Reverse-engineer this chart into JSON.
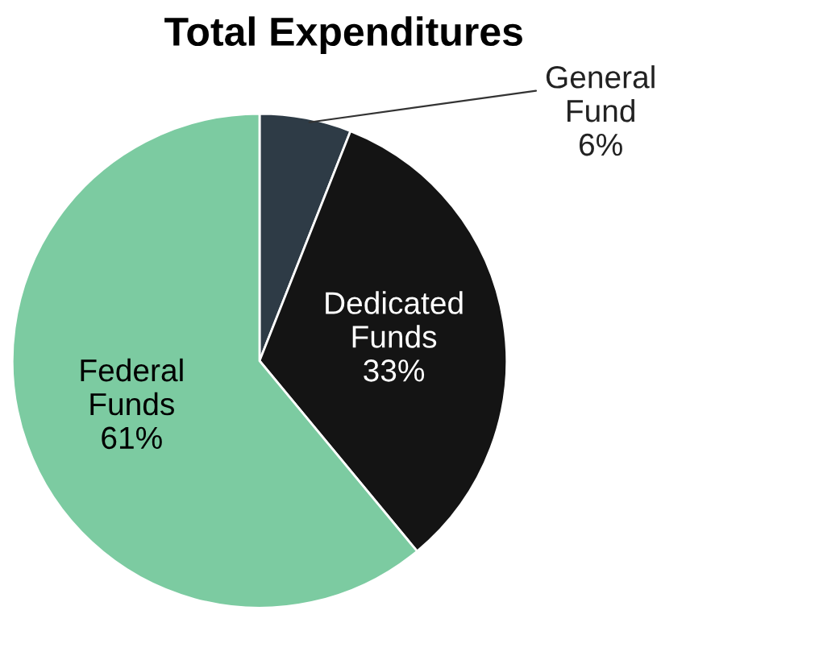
{
  "chart_data": {
    "type": "pie",
    "title": "Total Expenditures",
    "categories": [
      "General\nFund",
      "Dedicated\nFunds",
      "Federal\nFunds"
    ],
    "values": [
      6,
      33,
      61
    ],
    "colors": [
      "#2e3b46",
      "#141414",
      "#7ccba1"
    ],
    "value_labels": [
      "6%",
      "33%",
      "61%"
    ],
    "legend": false
  }
}
